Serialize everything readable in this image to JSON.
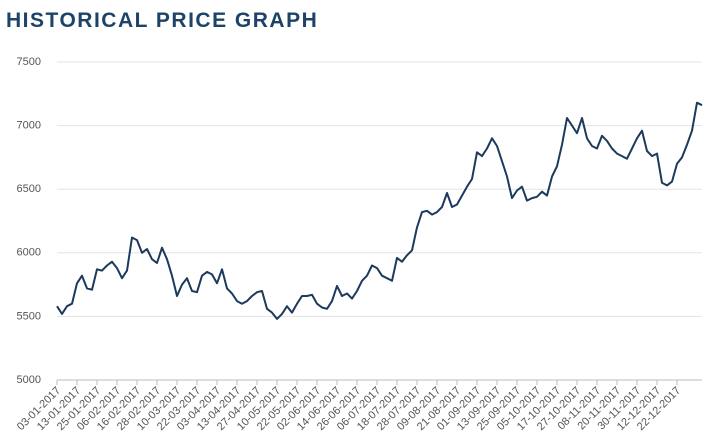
{
  "chart_data": {
    "type": "line",
    "title": "HISTORICAL PRICE GRAPH",
    "categories": [
      "03-01-2017",
      null,
      null,
      null,
      "13-01-2017",
      null,
      null,
      null,
      "25-01-2017",
      null,
      null,
      null,
      "06-02-2017",
      null,
      null,
      null,
      "16-02-2017",
      null,
      null,
      null,
      "28-02-2017",
      null,
      null,
      null,
      "10-03-2017",
      null,
      null,
      null,
      "22-03-2017",
      null,
      null,
      null,
      "03-04-2017",
      null,
      null,
      null,
      "13-04-2017",
      null,
      null,
      null,
      "27-04-2017",
      null,
      null,
      null,
      "10-05-2017",
      null,
      null,
      null,
      "22-05-2017",
      null,
      null,
      null,
      "02-06-2017",
      null,
      null,
      null,
      "14-06-2017",
      null,
      null,
      null,
      "26-06-2017",
      null,
      null,
      null,
      "06-07-2017",
      null,
      null,
      null,
      "18-07-2017",
      null,
      null,
      null,
      "28-07-2017",
      null,
      null,
      null,
      "09-08-2017",
      null,
      null,
      null,
      "21-08-2017",
      null,
      null,
      null,
      "01-09-2017",
      null,
      null,
      null,
      "13-09-2017",
      null,
      null,
      null,
      "25-09-2017",
      null,
      null,
      null,
      "05-10-2017",
      null,
      null,
      null,
      "17-10-2017",
      null,
      null,
      null,
      "27-10-2017",
      null,
      null,
      null,
      "08-11-2017",
      null,
      null,
      null,
      "20-11-2017",
      null,
      null,
      null,
      "30-11-2017",
      null,
      null,
      null,
      "12-12-2017",
      null,
      null,
      null,
      "22-12-2017",
      null,
      null,
      null,
      null,
      null
    ],
    "values": [
      5580,
      5520,
      5580,
      5600,
      5760,
      5820,
      5720,
      5710,
      5870,
      5860,
      5900,
      5930,
      5880,
      5800,
      5860,
      6120,
      6100,
      6000,
      6030,
      5950,
      5920,
      6040,
      5950,
      5820,
      5660,
      5750,
      5800,
      5700,
      5690,
      5820,
      5850,
      5830,
      5760,
      5870,
      5720,
      5680,
      5620,
      5600,
      5620,
      5660,
      5690,
      5700,
      5560,
      5530,
      5480,
      5520,
      5580,
      5530,
      5600,
      5660,
      5660,
      5670,
      5600,
      5570,
      5560,
      5620,
      5740,
      5660,
      5680,
      5640,
      5700,
      5780,
      5820,
      5900,
      5880,
      5820,
      5800,
      5780,
      5960,
      5930,
      5980,
      6020,
      6200,
      6320,
      6330,
      6300,
      6320,
      6360,
      6470,
      6360,
      6380,
      6450,
      6520,
      6580,
      6790,
      6760,
      6820,
      6900,
      6840,
      6720,
      6600,
      6430,
      6490,
      6520,
      6410,
      6430,
      6440,
      6480,
      6450,
      6600,
      6680,
      6850,
      7060,
      7000,
      6940,
      7060,
      6900,
      6840,
      6820,
      6920,
      6880,
      6820,
      6780,
      6760,
      6740,
      6820,
      6900,
      6960,
      6800,
      6760,
      6780,
      6550,
      6530,
      6560,
      6700,
      6750,
      6850,
      6960,
      7180,
      7160
    ],
    "color": "#1b3a5c",
    "ylim": [
      5000,
      7500
    ],
    "yticks": [
      5000,
      5500,
      6000,
      6500,
      7000,
      7500
    ],
    "grid": true
  }
}
